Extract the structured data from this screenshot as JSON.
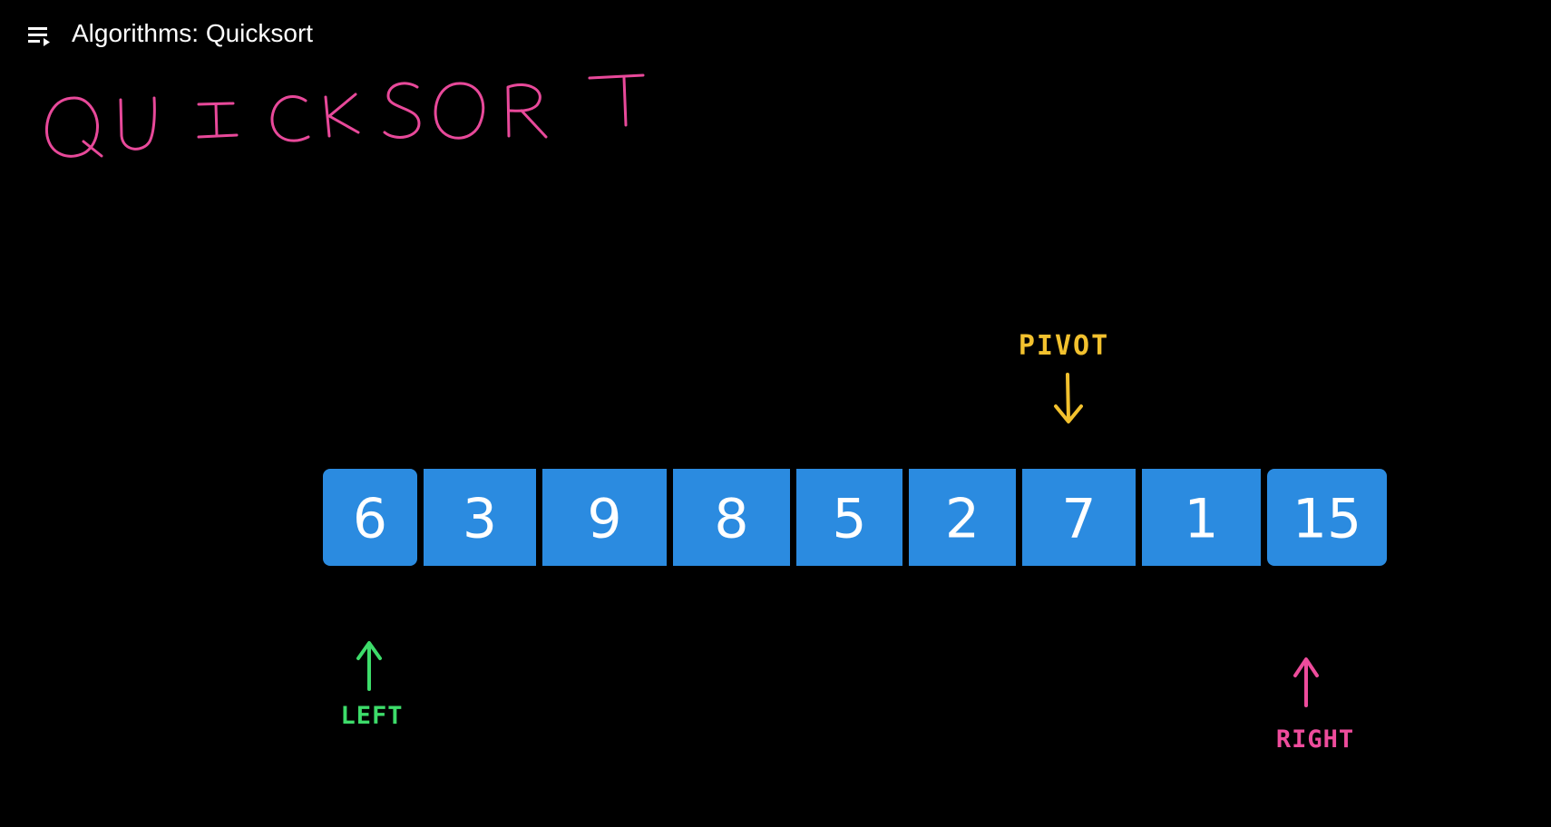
{
  "player": {
    "title": "Algorithms: Quicksort",
    "playlist_icon": "playlist-icon"
  },
  "whiteboard": {
    "heading": "QUICKSORT",
    "array": [
      "6",
      "3",
      "9",
      "8",
      "5",
      "2",
      "7",
      "1",
      "15"
    ],
    "pivot_label": "PIVOT",
    "pivot_index": 6,
    "left_label": "LEFT",
    "left_index": 0,
    "right_label": "RIGHT",
    "right_index": 8
  },
  "colors": {
    "background": "#000000",
    "heading": "#e8499a",
    "cell": "#2b8be0",
    "cell_text": "#ffffff",
    "pivot": "#f2c12e",
    "left": "#3ddc6a",
    "right": "#ee4c9c"
  }
}
